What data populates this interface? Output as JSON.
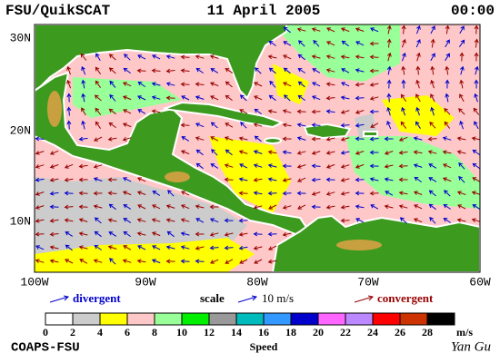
{
  "header": {
    "title": "FSU/QuikSCAT",
    "date": "11 April 2005",
    "time": "00:00"
  },
  "map": {
    "lat_labels": [
      "30N",
      "20N",
      "10N"
    ],
    "lon_labels": [
      "100W",
      "90W",
      "80W",
      "70W",
      "60W"
    ]
  },
  "legend": {
    "divergent": "divergent",
    "scale": "scale",
    "scale_value": "10 m/s",
    "convergent": "convergent"
  },
  "colorbar": {
    "labels": [
      0,
      2,
      4,
      6,
      8,
      10,
      12,
      14,
      16,
      18,
      20,
      22,
      24,
      26,
      28
    ],
    "unit": "m/s",
    "title": "Speed",
    "colors": [
      "#ffffff",
      "#cccccc",
      "#ffff00",
      "#ffc8c8",
      "#99ff99",
      "#00ee00",
      "#999999",
      "#00bbbb",
      "#3399ff",
      "#0000cc",
      "#ff66ff",
      "#bb88ff",
      "#ff0000",
      "#cc3300",
      "#000000"
    ]
  },
  "footer": {
    "left": "COAPS-FSU",
    "right": "Yan Gu"
  }
}
